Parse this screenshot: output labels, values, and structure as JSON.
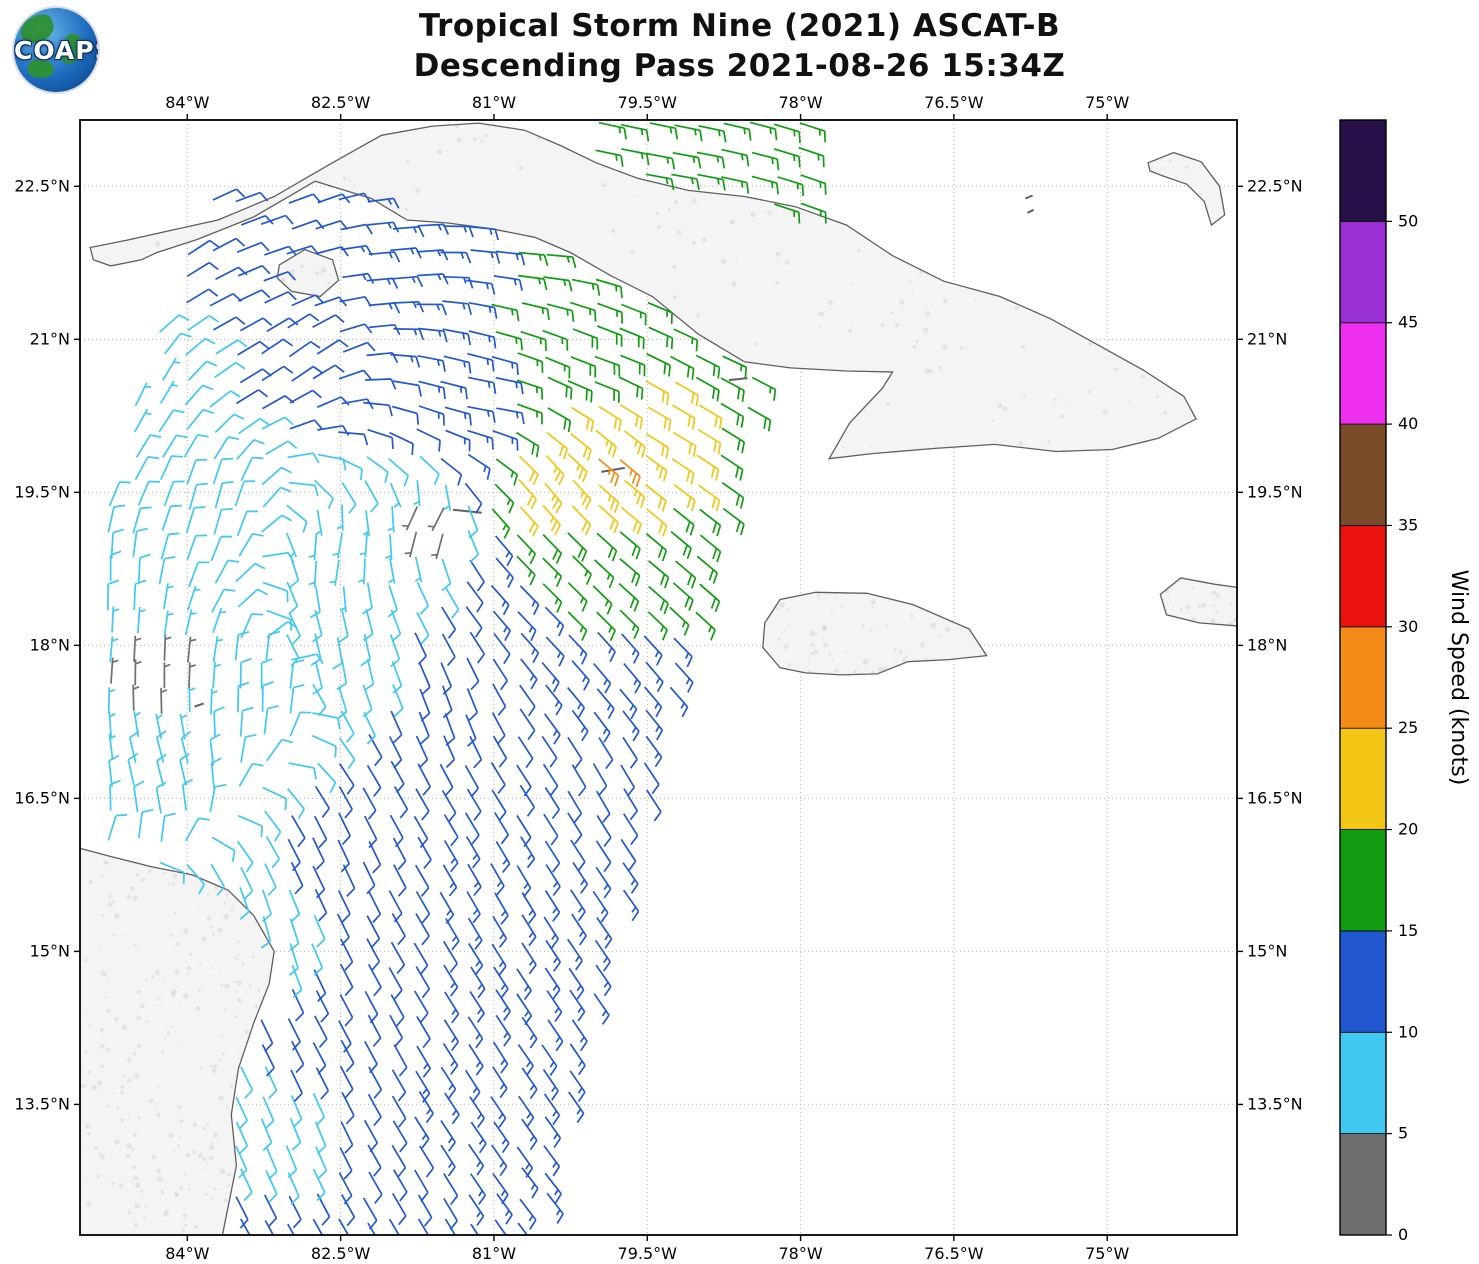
{
  "header": {
    "title_line1": "Tropical Storm Nine (2021) ASCAT-B",
    "title_line2": "Descending Pass 2021-08-26 15:34Z",
    "logo_text": "COAPS"
  },
  "map": {
    "lon_min": -85.05,
    "lon_max": -73.73,
    "lat_min": 12.22,
    "lat_max": 23.15,
    "lon_ticks": [
      {
        "value": -84,
        "label": "84°W"
      },
      {
        "value": -82.5,
        "label": "82.5°W"
      },
      {
        "value": -81,
        "label": "81°W"
      },
      {
        "value": -79.5,
        "label": "79.5°W"
      },
      {
        "value": -78,
        "label": "78°W"
      },
      {
        "value": -76.5,
        "label": "76.5°W"
      },
      {
        "value": -75,
        "label": "75°W"
      }
    ],
    "lat_ticks": [
      {
        "value": 13.5,
        "label": "13.5°N"
      },
      {
        "value": 15,
        "label": "15°N"
      },
      {
        "value": 16.5,
        "label": "16.5°N"
      },
      {
        "value": 18,
        "label": "18°N"
      },
      {
        "value": 19.5,
        "label": "19.5°N"
      },
      {
        "value": 21,
        "label": "21°N"
      },
      {
        "value": 22.5,
        "label": "22.5°N"
      }
    ]
  },
  "colorbar": {
    "label": "Wind Speed (knots)",
    "tick_labels": [
      "0",
      "5",
      "10",
      "15",
      "20",
      "25",
      "30",
      "35",
      "40",
      "45",
      "50"
    ],
    "levels": [
      0,
      5,
      10,
      15,
      20,
      25,
      30,
      35,
      40,
      45,
      50,
      55
    ]
  },
  "chart_data": {
    "type": "wind_barb_map",
    "title": "Tropical Storm Nine (2021) ASCAT-B",
    "subtitle": "Descending Pass 2021-08-26 15:34Z",
    "units": "knots",
    "lon_range": [
      -85.05,
      -73.73
    ],
    "lat_range": [
      12.22,
      23.15
    ],
    "speed_bins": [
      0,
      5,
      10,
      15,
      20,
      25,
      30,
      35,
      40,
      45,
      50
    ],
    "colors": [
      "#6e6e6e",
      "#3fc8f0",
      "#2257cf",
      "#109c10",
      "#f3c613",
      "#f58b17",
      "#ea120d",
      "#7c4b2a",
      "#ef2fef",
      "#9a2fd6",
      "#271048"
    ],
    "interpolation": {
      "method": "idw_vector",
      "power": 2.6
    },
    "swath": {
      "grid_spacing_deg": 0.25,
      "left_edge": {
        "lon0": -85.6,
        "lat0": 16.5,
        "dlon_dlat": 0.28
      },
      "right_edge": {
        "lon0": -80.35,
        "lat0": 13.0,
        "dlon_dlat": 0.2526
      },
      "top_exclusion": {
        "above_lat": 22.45,
        "west_of_lon": -80.0
      }
    },
    "wind_observations": [
      {
        "lon": -84.6,
        "lat": 20.5,
        "speed": 7,
        "dir_from": 25
      },
      {
        "lon": -84.8,
        "lat": 18.5,
        "speed": 8,
        "dir_from": 0
      },
      {
        "lon": -84.2,
        "lat": 16.8,
        "speed": 8,
        "dir_from": 345
      },
      {
        "lon": -83.8,
        "lat": 19.3,
        "speed": 8,
        "dir_from": 15
      },
      {
        "lon": -84.3,
        "lat": 22.0,
        "speed": 10,
        "dir_from": 55
      },
      {
        "lon": -83.0,
        "lat": 22.3,
        "speed": 12,
        "dir_from": 70
      },
      {
        "lon": -83.0,
        "lat": 20.8,
        "speed": 11,
        "dir_from": 55
      },
      {
        "lon": -82.0,
        "lat": 21.8,
        "speed": 13,
        "dir_from": 85
      },
      {
        "lon": -81.1,
        "lat": 20.4,
        "speed": 14,
        "dir_from": 100
      },
      {
        "lon": -80.6,
        "lat": 21.9,
        "speed": 15,
        "dir_from": 95
      },
      {
        "lon": -79.3,
        "lat": 22.6,
        "speed": 16,
        "dir_from": 100
      },
      {
        "lon": -78.6,
        "lat": 21.4,
        "speed": 14,
        "dir_from": 110
      },
      {
        "lon": -80.0,
        "lat": 20.8,
        "speed": 18,
        "dir_from": 110
      },
      {
        "lon": -79.4,
        "lat": 20.3,
        "speed": 22,
        "dir_from": 120
      },
      {
        "lon": -79.9,
        "lat": 19.9,
        "speed": 26,
        "dir_from": 130
      },
      {
        "lon": -80.5,
        "lat": 19.6,
        "speed": 24,
        "dir_from": 140
      },
      {
        "lon": -79.6,
        "lat": 19.0,
        "speed": 20,
        "dir_from": 130
      },
      {
        "lon": -80.3,
        "lat": 18.6,
        "speed": 15,
        "dir_from": 135
      },
      {
        "lon": -79.8,
        "lat": 17.8,
        "speed": 13,
        "dir_from": 140
      },
      {
        "lon": -80.0,
        "lat": 16.8,
        "speed": 12,
        "dir_from": 150
      },
      {
        "lon": -81.6,
        "lat": 19.3,
        "speed": 4,
        "dir_from": 210
      },
      {
        "lon": -82.5,
        "lat": 19.0,
        "speed": 6,
        "dir_from": 190
      },
      {
        "lon": -82.5,
        "lat": 18.0,
        "speed": 9,
        "dir_from": 170
      },
      {
        "lon": -81.5,
        "lat": 17.5,
        "speed": 10,
        "dir_from": 160
      },
      {
        "lon": -83.3,
        "lat": 17.5,
        "speed": 8,
        "dir_from": 0
      },
      {
        "lon": -84.3,
        "lat": 17.6,
        "speed": 3,
        "dir_from": 0
      },
      {
        "lon": -82.5,
        "lat": 16.0,
        "speed": 12,
        "dir_from": 155
      },
      {
        "lon": -81.2,
        "lat": 15.8,
        "speed": 13,
        "dir_from": 150
      },
      {
        "lon": -82.3,
        "lat": 14.3,
        "speed": 12,
        "dir_from": 152
      },
      {
        "lon": -81.0,
        "lat": 14.0,
        "speed": 13,
        "dir_from": 148
      },
      {
        "lon": -81.8,
        "lat": 12.6,
        "speed": 12,
        "dir_from": 150
      },
      {
        "lon": -80.6,
        "lat": 12.8,
        "speed": 13,
        "dir_from": 142
      },
      {
        "lon": -83.3,
        "lat": 15.2,
        "speed": 8,
        "dir_from": 165
      },
      {
        "lon": -83.0,
        "lat": 13.3,
        "speed": 9,
        "dir_from": 158
      },
      {
        "lon": -80.8,
        "lat": 14.0,
        "speed": 15,
        "dir_from": 145
      },
      {
        "lon": -80.9,
        "lat": 13.2,
        "speed": 14,
        "dir_from": 145
      }
    ]
  },
  "coastlines": {
    "cuba": [
      [
        -84.95,
        21.9
      ],
      [
        -84.6,
        21.97
      ],
      [
        -84.2,
        22.06
      ],
      [
        -83.7,
        22.17
      ],
      [
        -83.15,
        22.4
      ],
      [
        -82.6,
        22.72
      ],
      [
        -82.1,
        23.0
      ],
      [
        -81.6,
        23.09
      ],
      [
        -81.15,
        23.12
      ],
      [
        -80.7,
        23.05
      ],
      [
        -80.35,
        22.9
      ],
      [
        -80.0,
        22.73
      ],
      [
        -79.6,
        22.58
      ],
      [
        -79.1,
        22.46
      ],
      [
        -78.55,
        22.4
      ],
      [
        -78.05,
        22.3
      ],
      [
        -77.55,
        22.12
      ],
      [
        -77.1,
        21.82
      ],
      [
        -76.6,
        21.57
      ],
      [
        -76.05,
        21.42
      ],
      [
        -75.55,
        21.2
      ],
      [
        -75.1,
        20.95
      ],
      [
        -74.65,
        20.7
      ],
      [
        -74.25,
        20.44
      ],
      [
        -74.13,
        20.22
      ],
      [
        -74.5,
        20.03
      ],
      [
        -74.95,
        19.92
      ],
      [
        -75.5,
        19.9
      ],
      [
        -76.1,
        19.97
      ],
      [
        -76.7,
        19.93
      ],
      [
        -77.3,
        19.88
      ],
      [
        -77.72,
        19.83
      ],
      [
        -77.52,
        20.18
      ],
      [
        -77.2,
        20.52
      ],
      [
        -77.1,
        20.68
      ],
      [
        -77.55,
        20.69
      ],
      [
        -78.1,
        20.72
      ],
      [
        -78.55,
        20.78
      ],
      [
        -79.0,
        21.05
      ],
      [
        -79.45,
        21.42
      ],
      [
        -79.85,
        21.62
      ],
      [
        -80.25,
        21.85
      ],
      [
        -80.6,
        22.0
      ],
      [
        -81.0,
        22.08
      ],
      [
        -81.45,
        22.14
      ],
      [
        -81.85,
        22.17
      ],
      [
        -82.2,
        22.38
      ],
      [
        -82.75,
        22.55
      ],
      [
        -83.35,
        22.2
      ],
      [
        -83.9,
        21.98
      ],
      [
        -84.3,
        21.85
      ],
      [
        -84.45,
        21.78
      ],
      [
        -84.75,
        21.72
      ],
      [
        -84.92,
        21.78
      ]
    ],
    "isla_juventud": [
      [
        -83.1,
        21.73
      ],
      [
        -82.85,
        21.88
      ],
      [
        -82.58,
        21.78
      ],
      [
        -82.52,
        21.58
      ],
      [
        -82.7,
        21.42
      ],
      [
        -82.98,
        21.47
      ],
      [
        -83.12,
        21.6
      ]
    ],
    "jamaica": [
      [
        -78.35,
        18.22
      ],
      [
        -78.2,
        18.45
      ],
      [
        -77.85,
        18.52
      ],
      [
        -77.35,
        18.51
      ],
      [
        -76.9,
        18.4
      ],
      [
        -76.35,
        18.16
      ],
      [
        -76.18,
        17.9
      ],
      [
        -76.55,
        17.86
      ],
      [
        -76.95,
        17.84
      ],
      [
        -77.25,
        17.72
      ],
      [
        -77.6,
        17.71
      ],
      [
        -77.95,
        17.73
      ],
      [
        -78.2,
        17.78
      ],
      [
        -78.37,
        17.98
      ]
    ],
    "haiti_peninsula": [
      [
        -73.6,
        18.18
      ],
      [
        -74.1,
        18.22
      ],
      [
        -74.42,
        18.3
      ],
      [
        -74.48,
        18.5
      ],
      [
        -74.28,
        18.66
      ],
      [
        -73.95,
        18.6
      ],
      [
        -73.6,
        18.55
      ]
    ],
    "crooked_acklins": [
      [
        -74.6,
        22.73
      ],
      [
        -74.35,
        22.83
      ],
      [
        -74.08,
        22.74
      ],
      [
        -73.9,
        22.5
      ],
      [
        -73.85,
        22.22
      ],
      [
        -73.98,
        22.12
      ],
      [
        -74.05,
        22.35
      ],
      [
        -74.22,
        22.52
      ],
      [
        -74.45,
        22.6
      ],
      [
        -74.58,
        22.65
      ]
    ],
    "central_america": [
      [
        -85.2,
        16.05
      ],
      [
        -84.75,
        15.93
      ],
      [
        -84.35,
        15.83
      ],
      [
        -83.95,
        15.75
      ],
      [
        -83.6,
        15.6
      ],
      [
        -83.35,
        15.35
      ],
      [
        -83.15,
        15.0
      ],
      [
        -83.2,
        14.68
      ],
      [
        -83.35,
        14.3
      ],
      [
        -83.5,
        13.85
      ],
      [
        -83.57,
        13.4
      ],
      [
        -83.52,
        12.9
      ],
      [
        -83.6,
        12.5
      ],
      [
        -83.68,
        12.1
      ],
      [
        -85.2,
        12.1
      ]
    ],
    "small_islands": [
      [
        [
          -81.4,
          19.33
        ],
        [
          -81.12,
          19.3
        ]
      ],
      [
        [
          -79.95,
          19.7
        ],
        [
          -79.72,
          19.74
        ]
      ],
      [
        [
          -83.93,
          17.4
        ],
        [
          -83.84,
          17.43
        ]
      ],
      [
        [
          -75.8,
          22.38
        ],
        [
          -75.73,
          22.41
        ]
      ],
      [
        [
          -75.78,
          22.24
        ],
        [
          -75.72,
          22.27
        ]
      ],
      [
        [
          -78.7,
          20.6
        ],
        [
          -78.52,
          20.62
        ]
      ]
    ]
  }
}
